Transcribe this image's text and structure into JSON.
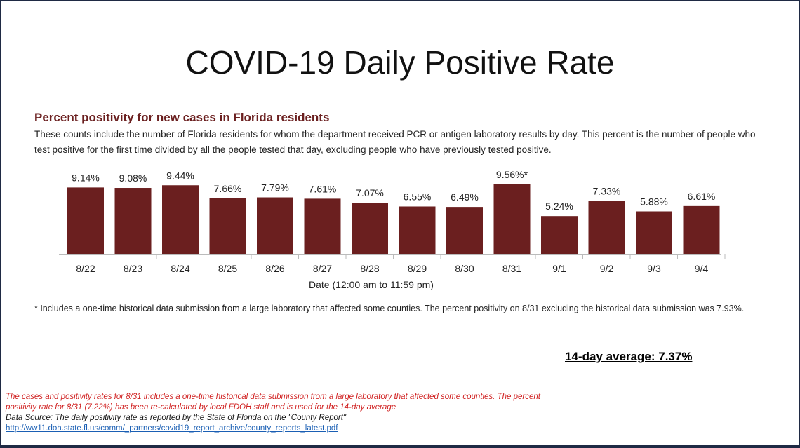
{
  "title": "COVID-19 Daily Positive Rate",
  "chart_data": {
    "type": "bar",
    "title": "Percent positivity for new cases in Florida residents",
    "description": "These counts include the number of Florida residents for whom the department received PCR or antigen laboratory results by day. This percent is the number of people who test positive for the first time divided by all the people tested that day, excluding people who have previously tested positive.",
    "categories": [
      "8/22",
      "8/23",
      "8/24",
      "8/25",
      "8/26",
      "8/27",
      "8/28",
      "8/29",
      "8/30",
      "8/31",
      "9/1",
      "9/2",
      "9/3",
      "9/4"
    ],
    "values": [
      9.14,
      9.08,
      9.44,
      7.66,
      7.79,
      7.61,
      7.07,
      6.55,
      6.49,
      9.56,
      5.24,
      7.33,
      5.88,
      6.61
    ],
    "data_labels": [
      "9.14%",
      "9.08%",
      "9.44%",
      "7.66%",
      "7.79%",
      "7.61%",
      "7.07%",
      "6.55%",
      "6.49%",
      "9.56%*",
      "5.24%",
      "7.33%",
      "5.88%",
      "6.61%"
    ],
    "xlabel": "Date (12:00 am to 11:59 pm)",
    "ylabel": "",
    "ylim": [
      0,
      10
    ],
    "grid": false,
    "bar_color": "#6b1f1f"
  },
  "note": "* Includes a one-time historical data submission from a large laboratory that affected some counties. The percent positivity on 8/31 excluding the historical data submission was 7.93%.",
  "average": "14-day average: 7.37%",
  "footer": {
    "red_text": "The cases and positivity rates for 8/31 includes a one-time historical data submission from a large laboratory that affected some counties. The percent positivity rate for 8/31 (7.22%) has been re-calculated by local FDOH staff and is used for the 14-day average",
    "source": "Data Source: The daily positivity rate as reported by the State of Florida on the \"County Report\"",
    "link": "http://ww11.doh.state.fl.us/comm/_partners/covid19_report_archive/county_reports_latest.pdf"
  }
}
